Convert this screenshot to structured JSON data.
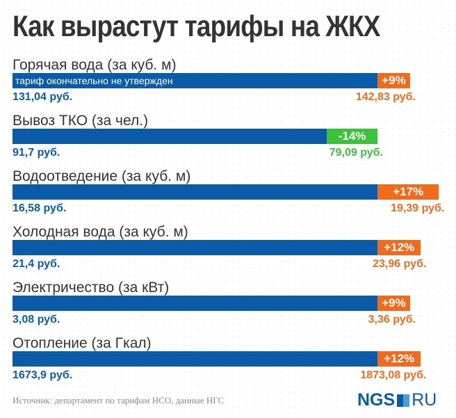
{
  "title": "Как вырастут тарифы на ЖКХ",
  "chart_data": {
    "type": "bar",
    "title": "Как вырастут тарифы на ЖКХ",
    "categories": [
      "Горячая вода (за куб. м)",
      "Вывоз ТКО (за чел.)",
      "Водоотведение (за куб. м)",
      "Холодная вода (за куб. м)",
      "Электричество (за кВт)",
      "Отопление (за Гкал)"
    ],
    "rows": [
      {
        "label": "Горячая вода (за куб. м)",
        "old": "131,04 руб.",
        "new": "142,83 руб.",
        "change": "+9%",
        "pct": 9,
        "note": "тариф окончательно не утвержден"
      },
      {
        "label": "Вывоз ТКО (за чел.)",
        "old": "91,7 руб.",
        "new": "79,09 руб.",
        "change": "-14%",
        "pct": -14
      },
      {
        "label": "Водоотведение (за куб. м)",
        "old": "16,58 руб.",
        "new": "19,39 руб.",
        "change": "+17%",
        "pct": 17
      },
      {
        "label": "Холодная вода (за куб. м)",
        "old": "21,4 руб.",
        "new": "23,96 руб.",
        "change": "+12%",
        "pct": 12
      },
      {
        "label": "Электричество (за кВт)",
        "old": "3,08 руб.",
        "new": "3,36 руб.",
        "change": "+9%",
        "pct": 9
      },
      {
        "label": "Отопление (за Гкал)",
        "old": "1673,9 руб.",
        "new": "1873,08 руб.",
        "change": "+12%",
        "pct": 12
      }
    ]
  },
  "colors": {
    "base": "#0b5ca8",
    "increase": "#f26b1d",
    "decrease": "#3cc13b"
  },
  "source": "Источник: департамент по тарифам НСО, данные НГС",
  "logo": {
    "left": "NGS",
    "right": "RU"
  }
}
